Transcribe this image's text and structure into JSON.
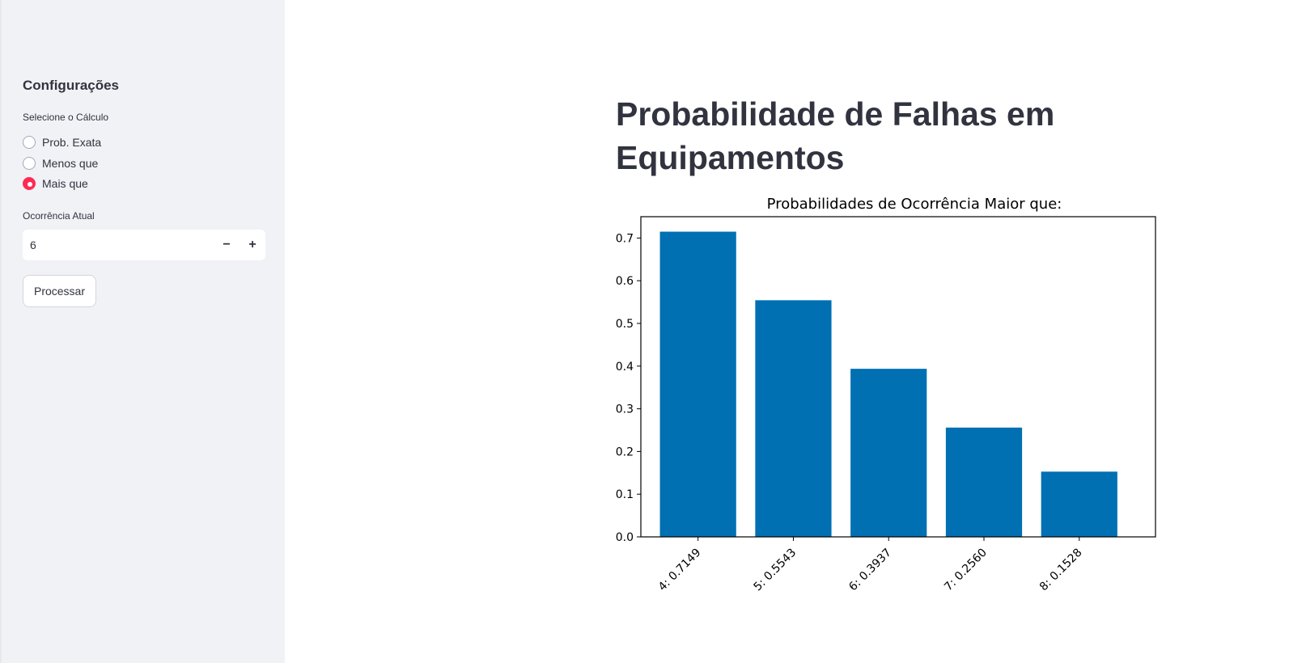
{
  "sidebar": {
    "title": "Configurações",
    "calc_label": "Selecione o Cálculo",
    "options": [
      {
        "label": "Prob. Exata",
        "selected": false
      },
      {
        "label": "Menos que",
        "selected": false
      },
      {
        "label": "Mais que",
        "selected": true
      }
    ],
    "occurrence_label": "Ocorrência Atual",
    "occurrence_value": "6",
    "minus_label": "−",
    "plus_label": "+",
    "process_label": "Processar"
  },
  "main": {
    "title": "Probabilidade de Falhas em Equipamentos"
  },
  "colors": {
    "accent": "#ff2b55",
    "bar": "#0070b3",
    "sidebar_bg": "#f0f2f6"
  },
  "chart_data": {
    "type": "bar",
    "title": "Probabilidades de Ocorrência Maior que:",
    "categories": [
      "4: 0.7149",
      "5: 0.5543",
      "6: 0.3937",
      "7: 0.2560",
      "8: 0.1528"
    ],
    "values": [
      0.7149,
      0.5543,
      0.3937,
      0.256,
      0.1528
    ],
    "yticks": [
      "0.0",
      "0.1",
      "0.2",
      "0.3",
      "0.4",
      "0.5",
      "0.6",
      "0.7"
    ],
    "ylim": [
      0,
      0.75
    ],
    "xlabel": "",
    "ylabel": "",
    "grid": false
  }
}
